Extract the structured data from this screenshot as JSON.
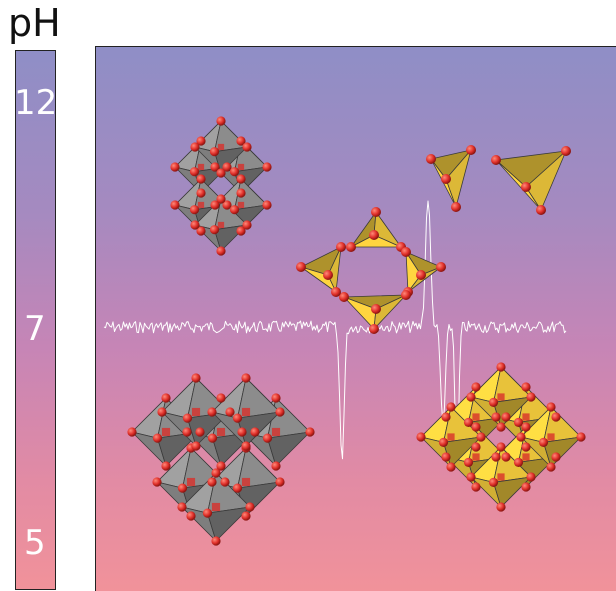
{
  "ph_axis": {
    "title": "pH",
    "ticks": [
      "12",
      "7",
      "5"
    ]
  },
  "colors": {
    "gradient_top": "#8f8ec6",
    "gradient_middle": "#c685b6",
    "gradient_bottom": "#f1929a",
    "octahedron_grey": "#8c8c8c",
    "tetrahedron_yellow": "#e8c23a",
    "oxygen_red": "#e0302a",
    "trace": "#ffffff"
  },
  "structures": [
    {
      "name": "grey-octahedral-cluster-small",
      "polyhedron": "octahedron",
      "color": "grey"
    },
    {
      "name": "yellow-tetrahedral-dimer",
      "polyhedron": "tetrahedron",
      "color": "yellow"
    },
    {
      "name": "yellow-tetrahedral-ring",
      "polyhedron": "tetrahedron",
      "color": "yellow"
    },
    {
      "name": "grey-octahedral-cluster-large",
      "polyhedron": "octahedron",
      "color": "grey"
    },
    {
      "name": "yellow-octahedral-cluster-large",
      "polyhedron": "octahedron",
      "color": "yellow"
    }
  ]
}
